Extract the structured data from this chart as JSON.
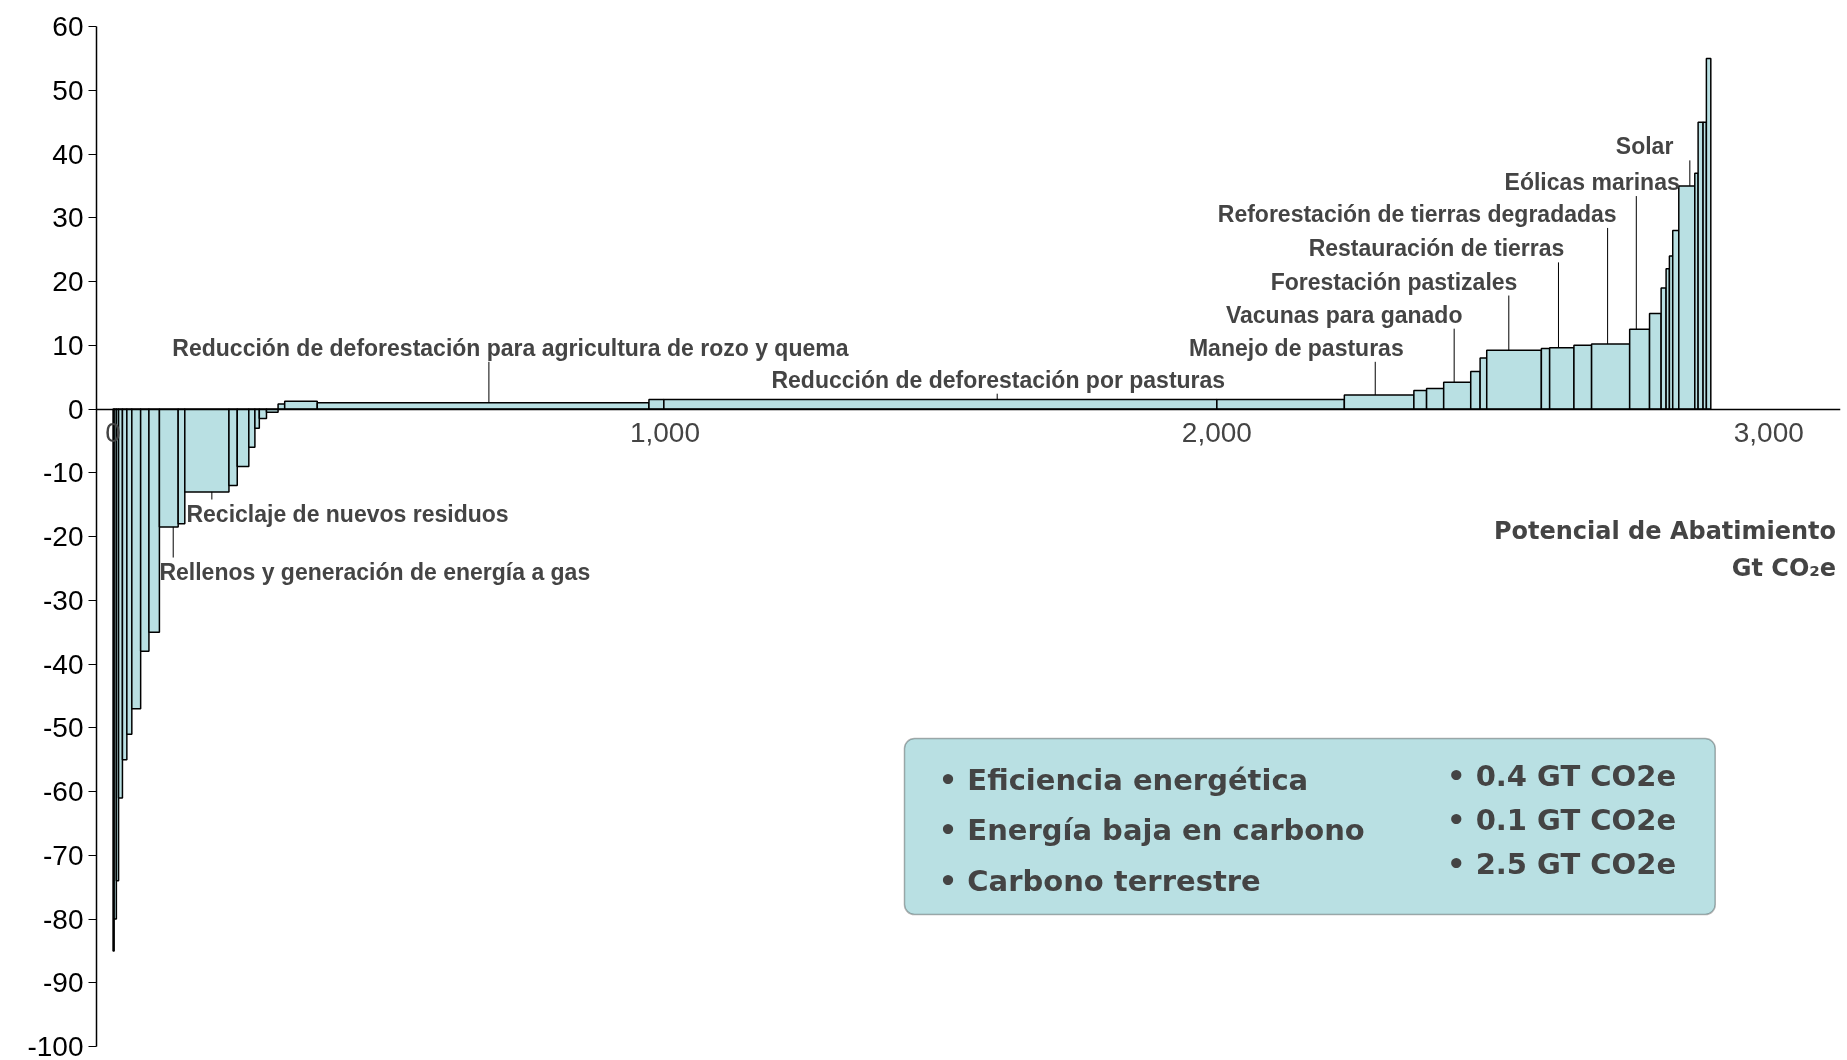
{
  "chart_data": {
    "type": "histogram",
    "color": "#b9e0e3",
    "bins": [
      0,
      2,
      6,
      10,
      17,
      25,
      34,
      50,
      65,
      84,
      118,
      130,
      210,
      225,
      246,
      257,
      265,
      278,
      299,
      311,
      370,
      971,
      998,
      2000,
      2231,
      2357,
      2380,
      2411,
      2460,
      2477,
      2489,
      2588,
      2603,
      2647,
      2679,
      2748,
      2784,
      2805,
      2814,
      2820,
      2826,
      2837,
      2866,
      2872,
      2881,
      2887,
      2895
    ],
    "values": [
      -85,
      -80,
      -74,
      -61,
      -55,
      -51,
      -47,
      -38,
      -35,
      -18.5,
      -18,
      -13,
      -12,
      -9,
      -6,
      -3,
      -1.5,
      -0.5,
      0.8,
      1.2,
      1.0,
      1.5,
      1.5,
      1.5,
      2.2,
      2.9,
      3.2,
      4.2,
      5.9,
      8,
      9.2,
      9.5,
      9.6,
      10,
      10.2,
      12.5,
      15,
      19,
      22,
      24,
      28,
      35,
      37,
      45,
      45,
      55
    ],
    "xlim": [
      -30,
      3130
    ],
    "ylim": [
      -100,
      60
    ],
    "xticks": [
      0,
      {
        "value": 1000,
        "label": "1,000"
      },
      {
        "value": 2000,
        "label": "2,000"
      },
      {
        "value": 3000,
        "label": "3,000"
      }
    ],
    "yticks": [
      -100,
      -90,
      -80,
      -70,
      -60,
      -50,
      -40,
      -30,
      -20,
      -10,
      0,
      10,
      20,
      30,
      40,
      50,
      60
    ],
    "xlabel": "Potencial de Abatimiento\nGt CO₂e",
    "grid": false,
    "annotations": [
      {
        "text": "Reciclaje de nuevos residuos",
        "x": 179,
        "y": -13
      },
      {
        "text": "Rellenos y generación de  energía a gas",
        "x": 109,
        "y": -18.5
      },
      {
        "text": "Reducción de deforestación para agricultura de rozo y quema",
        "x": 681,
        "y": 1.0
      },
      {
        "text": "Reducción de deforestación por pasturas",
        "x": 1602,
        "y": 1.5
      },
      {
        "text": "Manejo de pasturas",
        "x": 2287,
        "y": 2.2
      },
      {
        "text": "Vacunas para ganado",
        "x": 2430,
        "y": 4.2
      },
      {
        "text": "Forestación pastizales",
        "x": 2529,
        "y": 9.2
      },
      {
        "text": "Restauración de tierras",
        "x": 2619,
        "y": 9.6
      },
      {
        "text": "Reforestación de tierras degradadas",
        "x": 2708,
        "y": 10.2
      },
      {
        "text": "Eólicas marinas",
        "x": 2760,
        "y": 12.5
      },
      {
        "text": "Solar",
        "x": 2857,
        "y": 35
      },
      "• Eficiencia energética",
      "• Energía baja en carbono",
      "• Carbono terrestre",
      "• 0.4 GT CO2e",
      "• 0.1 GT CO2e",
      "• 2.5 GT CO2e"
    ]
  }
}
